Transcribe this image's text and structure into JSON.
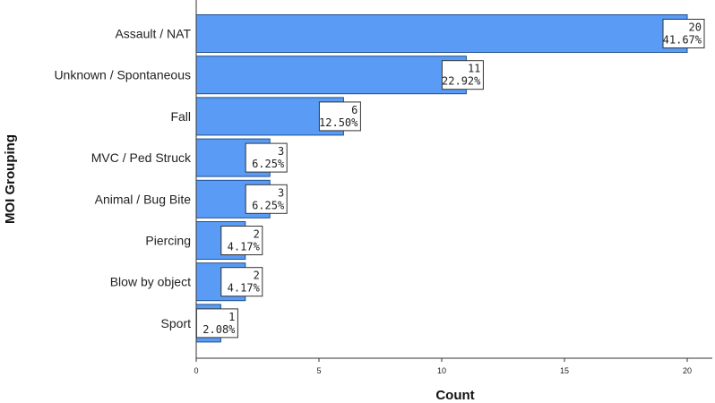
{
  "chart_data": {
    "type": "bar",
    "orientation": "horizontal",
    "categories": [
      "Assault / NAT",
      "Unknown / Spontaneous",
      "Fall",
      "MVC / Ped Struck",
      "Animal / Bug Bite",
      "Piercing",
      "Blow by object",
      "Sport"
    ],
    "values": [
      20,
      11,
      6,
      3,
      3,
      2,
      2,
      1
    ],
    "percent_labels": [
      "41.67%",
      "22.92%",
      "12.50%",
      "6.25%",
      "6.25%",
      "4.17%",
      "4.17%",
      "2.08%"
    ],
    "title": "",
    "xlabel": "Count",
    "ylabel": "MOI Grouping",
    "xlim": [
      0,
      20
    ],
    "xticks": [
      0,
      5,
      10,
      15,
      20
    ],
    "grid": false,
    "bar_color": "#5a9cf5",
    "bar_edge_color": "#1f4f8f"
  }
}
